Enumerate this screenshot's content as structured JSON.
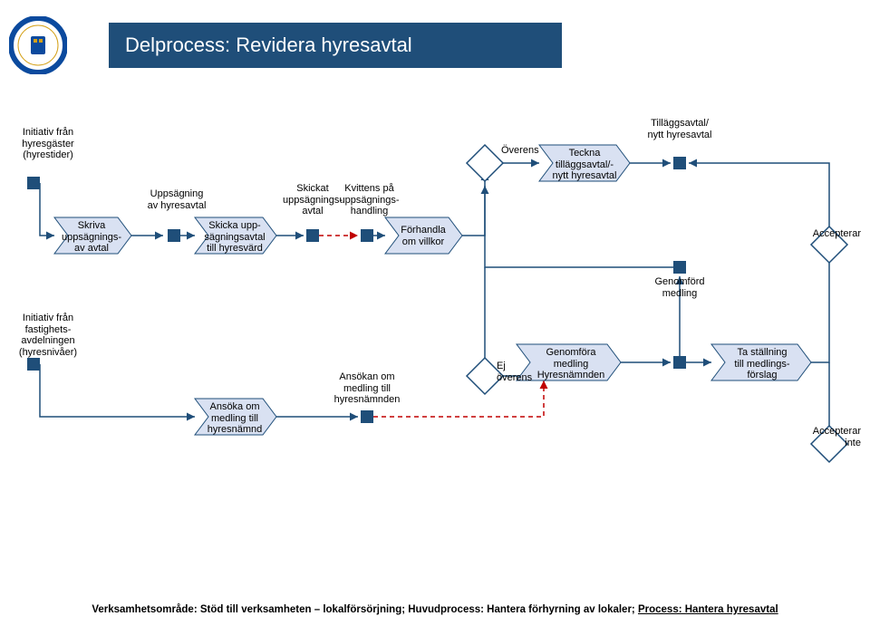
{
  "title": "Delprocess: Revidera hyresavtal",
  "colors": {
    "header_bg": "#1f4e79",
    "header_text": "#ffffff",
    "arrow_fill": "#d9e1f2",
    "arrow_stroke": "#1f4e79",
    "diamond_stroke": "#1f4e79",
    "square_fill": "#1f4e79",
    "connector": "#1f4e79",
    "connector_dash": "#c00000",
    "logo_ring": "#0b4a9e",
    "logo_gold": "#d4a017"
  },
  "labels": {
    "start1": "Initiativ från\nhyresgäster\n(hyrestider)",
    "start2": "Initiativ från\nfastighets-\navdelningen\n(hyresnivåer)",
    "arrow_a": "Skriva\nuppsägnings-\nav avtal",
    "event_b": "Uppsägning\nav hyresavtal",
    "arrow_c": "Skicka upp-\nsägningsavtal\ntill hyresvärd",
    "event_d": "Skickat\nuppsägnings-\navtal",
    "event_e": "Kvittens på\nuppsägnings-\nhandling",
    "arrow_f": "Förhandla\nom villkor",
    "diamond_top": "Överens",
    "diamond_bot": "Ej\növerens",
    "arrow_g": "Teckna\ntilläggsavtal/-\nnytt hyresavtal",
    "event_h": "Tilläggsavtal/\nnytt hyresavtal",
    "event_i": "Genomförd\nmedling",
    "arrow_j": "Ansöka om\nmedling till\nhyresnämnd",
    "event_k": "Ansökan om\nmedling till\nhyresnämnden",
    "arrow_l": "Genomföra\nmedling\nHyresnämnden",
    "arrow_m": "Ta ställning\ntill medlings-\nförslag",
    "diamond_acc": "Accepterar",
    "diamond_rej": "Accepterar\ninte"
  },
  "footer": {
    "pre": "Verksamhetsområde: Stöd till verksamheten – lokalförsörjning; Huvudprocess: Hantera förhyrning av lokaler; ",
    "link": "Process: Hantera hyresavtal"
  }
}
